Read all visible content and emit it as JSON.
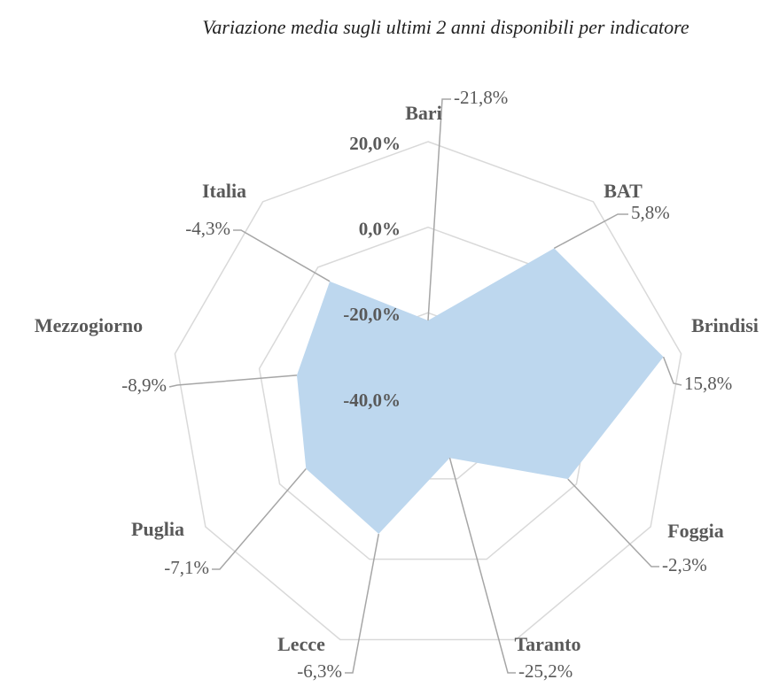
{
  "chart_data": {
    "type": "radar",
    "title": "Variazione media sugli ultimi 2 anni disponibili per indicatore",
    "categories": [
      "Bari",
      "BAT",
      "Brindisi",
      "Foggia",
      "Taranto",
      "Lecce",
      "Puglia",
      "Mezzogiorno",
      "Italia"
    ],
    "values": [
      -21.8,
      5.8,
      15.8,
      -2.3,
      -25.2,
      -6.3,
      -7.1,
      -8.9,
      -4.3
    ],
    "value_labels": [
      "-21,8%",
      "5,8%",
      "15,8%",
      "-2,3%",
      "-25,2%",
      "-6,3%",
      "-7,1%",
      "-8,9%",
      "-4,3%"
    ],
    "color": "#bdd7ee",
    "ylim": [
      -40,
      20
    ],
    "yticks": [
      {
        "value": -40,
        "label": "-40,0%"
      },
      {
        "value": -20,
        "label": "-20,0%"
      },
      {
        "value": 0,
        "label": "0,0%"
      },
      {
        "value": 20,
        "label": "20,0%"
      }
    ],
    "grid": true
  }
}
